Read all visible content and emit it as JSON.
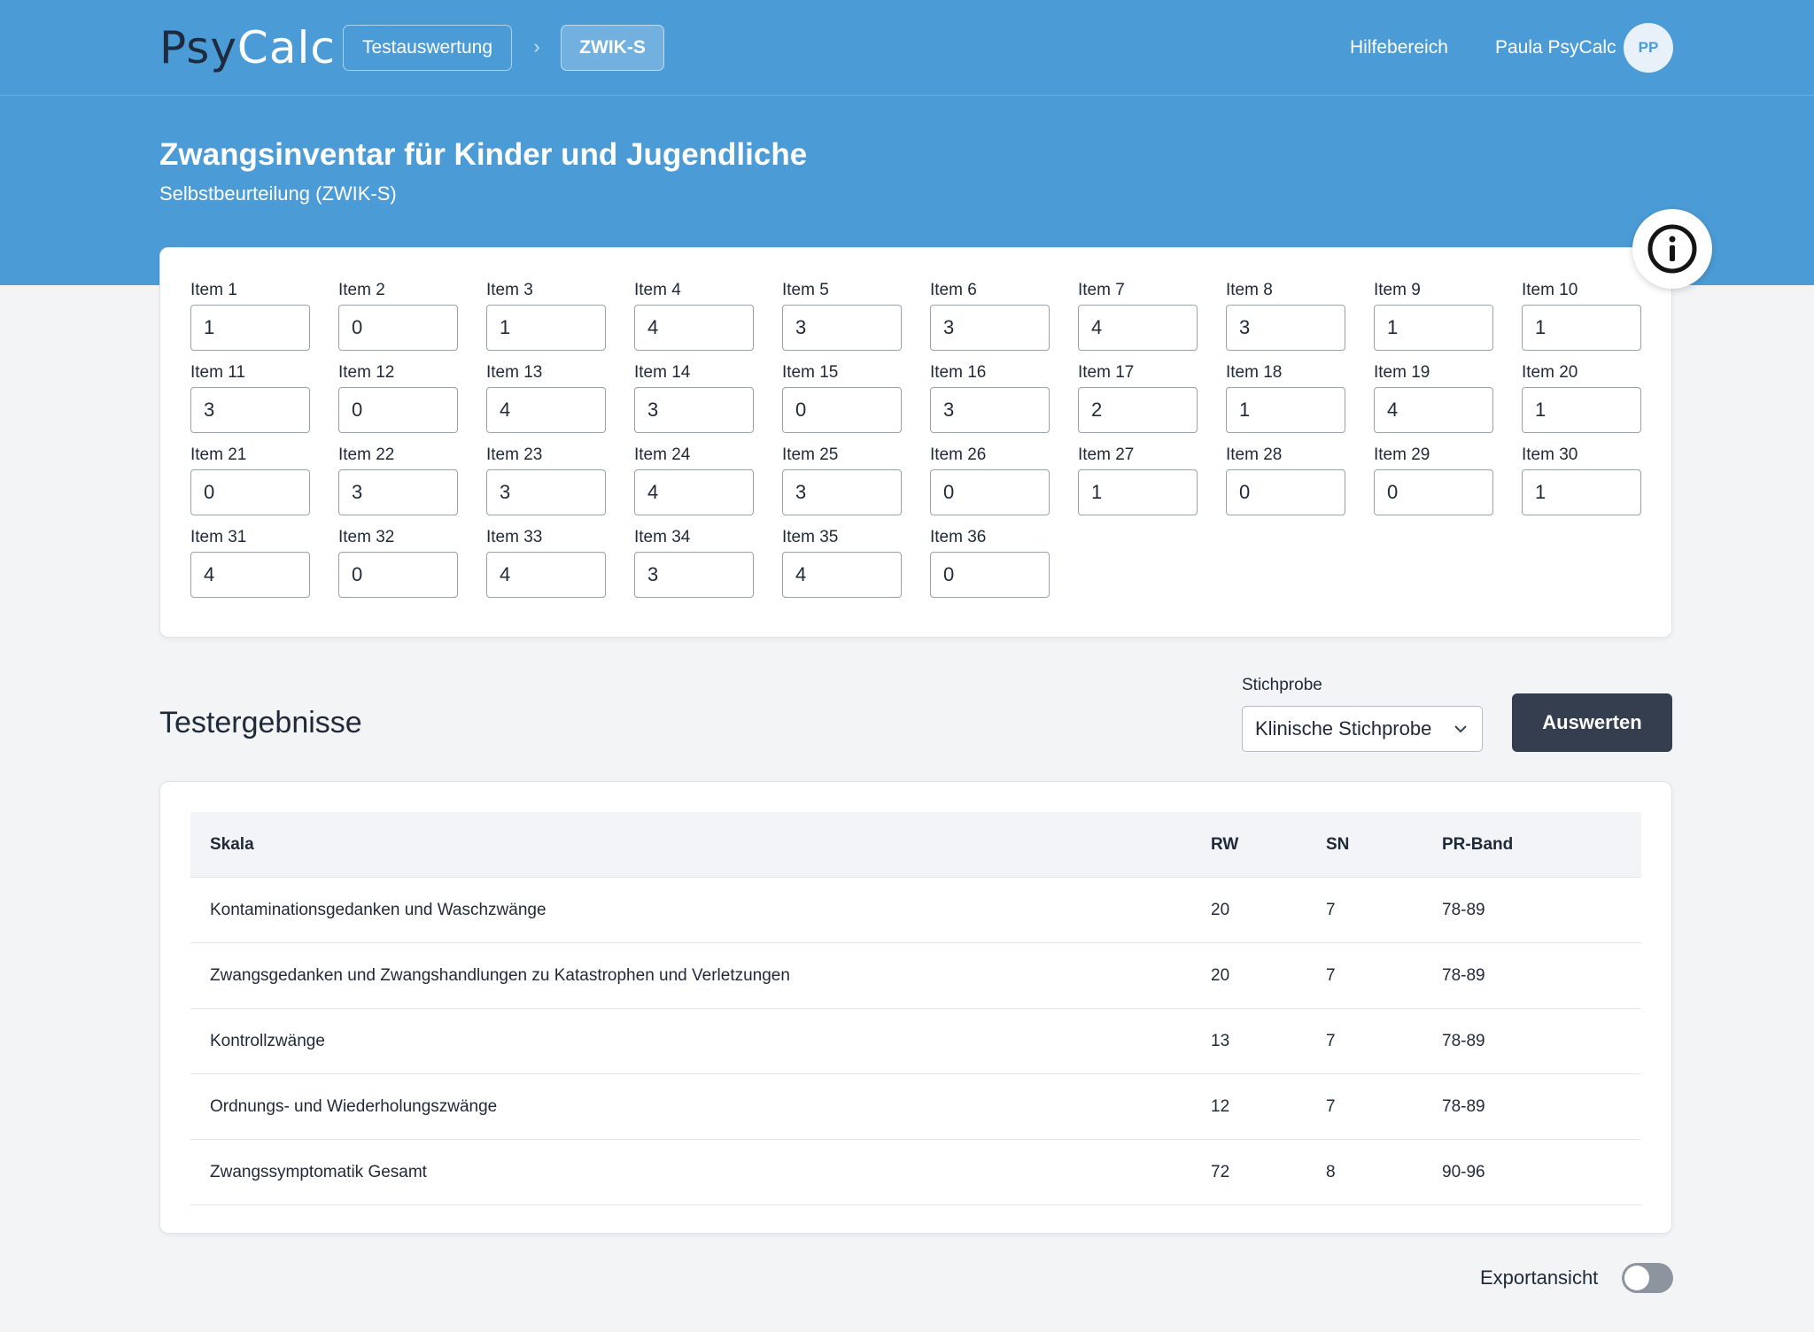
{
  "header": {
    "logo_part1": "Psy",
    "logo_part2": "Calc",
    "breadcrumb": [
      "Testauswertung",
      "ZWIK-S"
    ],
    "help_link": "Hilfebereich",
    "user_name": "Paula PsyCalc",
    "user_initials": "PP"
  },
  "page": {
    "title": "Zwangsinventar für Kinder und Jugendliche",
    "subtitle": "Selbstbeurteilung (ZWIK-S)",
    "info_icon": "info-circle-icon"
  },
  "items": [
    {
      "label": "Item 1",
      "value": "1"
    },
    {
      "label": "Item 2",
      "value": "0"
    },
    {
      "label": "Item 3",
      "value": "1"
    },
    {
      "label": "Item 4",
      "value": "4"
    },
    {
      "label": "Item 5",
      "value": "3"
    },
    {
      "label": "Item 6",
      "value": "3"
    },
    {
      "label": "Item 7",
      "value": "4"
    },
    {
      "label": "Item 8",
      "value": "3"
    },
    {
      "label": "Item 9",
      "value": "1"
    },
    {
      "label": "Item 10",
      "value": "1"
    },
    {
      "label": "Item 11",
      "value": "3"
    },
    {
      "label": "Item 12",
      "value": "0"
    },
    {
      "label": "Item 13",
      "value": "4"
    },
    {
      "label": "Item 14",
      "value": "3"
    },
    {
      "label": "Item 15",
      "value": "0"
    },
    {
      "label": "Item 16",
      "value": "3"
    },
    {
      "label": "Item 17",
      "value": "2"
    },
    {
      "label": "Item 18",
      "value": "1"
    },
    {
      "label": "Item 19",
      "value": "4"
    },
    {
      "label": "Item 20",
      "value": "1"
    },
    {
      "label": "Item 21",
      "value": "0"
    },
    {
      "label": "Item 22",
      "value": "3"
    },
    {
      "label": "Item 23",
      "value": "3"
    },
    {
      "label": "Item 24",
      "value": "4"
    },
    {
      "label": "Item 25",
      "value": "3"
    },
    {
      "label": "Item 26",
      "value": "0"
    },
    {
      "label": "Item 27",
      "value": "1"
    },
    {
      "label": "Item 28",
      "value": "0"
    },
    {
      "label": "Item 29",
      "value": "0"
    },
    {
      "label": "Item 30",
      "value": "1"
    },
    {
      "label": "Item 31",
      "value": "4"
    },
    {
      "label": "Item 32",
      "value": "0"
    },
    {
      "label": "Item 33",
      "value": "4"
    },
    {
      "label": "Item 34",
      "value": "3"
    },
    {
      "label": "Item 35",
      "value": "4"
    },
    {
      "label": "Item 36",
      "value": "0"
    }
  ],
  "results": {
    "title": "Testergebnisse",
    "sample_label": "Stichprobe",
    "sample_value": "Klinische Stichprobe",
    "evaluate_button": "Auswerten",
    "columns": [
      "Skala",
      "RW",
      "SN",
      "PR-Band"
    ],
    "rows": [
      {
        "skala": "Kontaminationsgedanken und Waschzwänge",
        "rw": "20",
        "sn": "7",
        "pr": "78-89"
      },
      {
        "skala": "Zwangsgedanken und Zwangshandlungen zu Katastrophen und Verletzungen",
        "rw": "20",
        "sn": "7",
        "pr": "78-89"
      },
      {
        "skala": "Kontrollzwänge",
        "rw": "13",
        "sn": "7",
        "pr": "78-89"
      },
      {
        "skala": "Ordnungs- und Wiederholungszwänge",
        "rw": "12",
        "sn": "7",
        "pr": "78-89"
      },
      {
        "skala": "Zwangssymptomatik Gesamt",
        "rw": "72",
        "sn": "8",
        "pr": "90-96"
      }
    ]
  },
  "footer": {
    "export_label": "Exportansicht",
    "export_enabled": false
  },
  "colors": {
    "brand_blue": "#4b9cd6",
    "button_dark": "#343e4f",
    "logo_dark": "#1f2a3e"
  }
}
